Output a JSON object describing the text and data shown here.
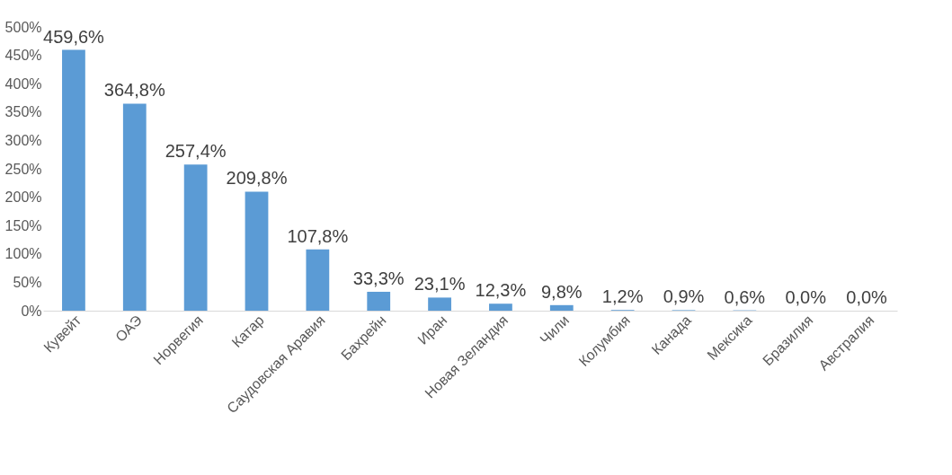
{
  "chart_data": {
    "type": "bar",
    "categories": [
      "Кувейт",
      "ОАЭ",
      "Норвегия",
      "Катар",
      "Саудовская Аравия",
      "Бахрейн",
      "Иран",
      "Новая Зеландия",
      "Чили",
      "Колумбия",
      "Канада",
      "Мексика",
      "Бразилия",
      "Австралия"
    ],
    "values": [
      459.6,
      364.8,
      257.4,
      209.8,
      107.8,
      33.3,
      23.1,
      12.3,
      9.8,
      1.2,
      0.9,
      0.6,
      0.0,
      0.0
    ],
    "value_labels": [
      "459,6%",
      "364,8%",
      "257,4%",
      "209,8%",
      "107,8%",
      "33,3%",
      "23,1%",
      "12,3%",
      "9,8%",
      "1,2%",
      "0,9%",
      "0,6%",
      "0,0%",
      "0,0%"
    ],
    "color": "#5b9bd5",
    "ylim": [
      0,
      500
    ],
    "yticks": [
      {
        "value": 0,
        "label": "0%"
      },
      {
        "value": 50,
        "label": "50%"
      },
      {
        "value": 100,
        "label": "100%"
      },
      {
        "value": 150,
        "label": "150%"
      },
      {
        "value": 200,
        "label": "200%"
      },
      {
        "value": 250,
        "label": "250%"
      },
      {
        "value": 300,
        "label": "300%"
      },
      {
        "value": 350,
        "label": "350%"
      },
      {
        "value": 400,
        "label": "400%"
      },
      {
        "value": 450,
        "label": "450%"
      },
      {
        "value": 500,
        "label": "500%"
      }
    ],
    "grid": false
  }
}
